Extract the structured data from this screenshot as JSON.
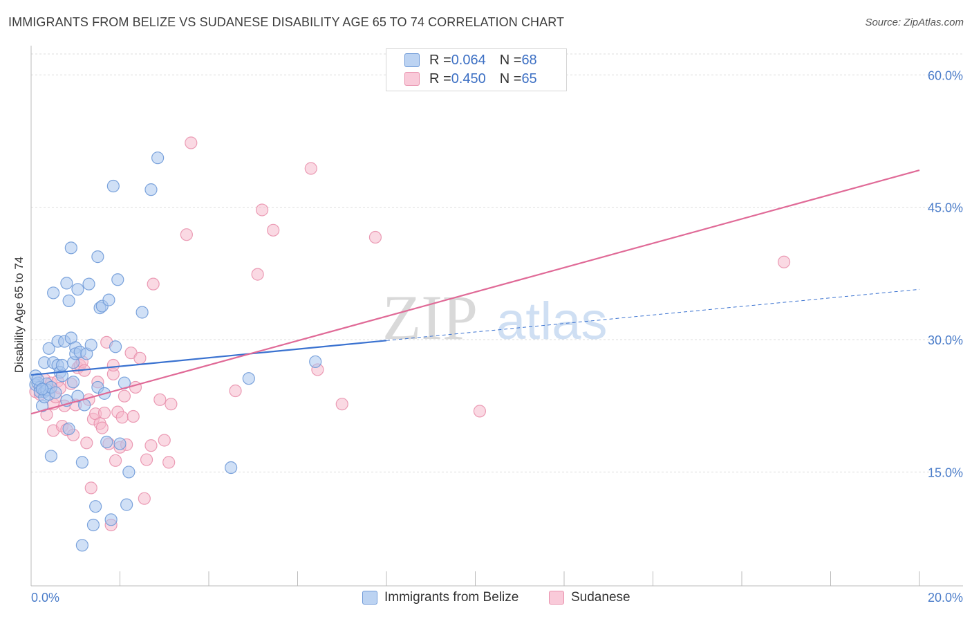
{
  "title": "IMMIGRANTS FROM BELIZE VS SUDANESE DISABILITY AGE 65 TO 74 CORRELATION CHART",
  "source": "Source: ZipAtlas.com",
  "watermark": {
    "zip": "ZIP",
    "atlas": "atlas"
  },
  "legend": {
    "rows": [
      {
        "r_label": "R = ",
        "r_value": "0.064",
        "n_label": "N = ",
        "n_value": "68"
      },
      {
        "r_label": "R = ",
        "r_value": "0.450",
        "n_label": "N = ",
        "n_value": "65"
      }
    ]
  },
  "colors": {
    "blue_fill": "#a9c6ef",
    "blue_stroke": "#6f9ad8",
    "blue_line": "#3a72d0",
    "pink_fill": "#f6b9cc",
    "pink_stroke": "#e991ad",
    "pink_line": "#e06a97",
    "grid": "#dddddd",
    "tick_label": "#4a7cc9"
  },
  "chart_data": {
    "type": "scatter",
    "title": "IMMIGRANTS FROM BELIZE VS SUDANESE DISABILITY AGE 65 TO 74 CORRELATION CHART",
    "xlabel": "",
    "ylabel": "Disability Age 65 to 74",
    "xlim": [
      0,
      20
    ],
    "ylim": [
      2.1,
      63
    ],
    "x_tick_labels": [
      "0.0%",
      "20.0%"
    ],
    "y_ticks": [
      {
        "value": 15,
        "label": "15.0%"
      },
      {
        "value": 30,
        "label": "30.0%"
      },
      {
        "value": 45,
        "label": "45.0%"
      },
      {
        "value": 60,
        "label": "60.0%"
      }
    ],
    "grid": true,
    "series": [
      {
        "name": "Immigrants from Belize",
        "color": "blue",
        "r": 0.064,
        "n": 68,
        "trend": {
          "x0": 0,
          "y0": 26.0,
          "x1": 8.0,
          "y1": 29.9,
          "dash_x1": 20.0,
          "dash_y1": 35.7
        },
        "points": [
          [
            0.1,
            25.9
          ],
          [
            0.1,
            24.9
          ],
          [
            0.15,
            25.1
          ],
          [
            0.2,
            24.6
          ],
          [
            0.2,
            24.1
          ],
          [
            0.25,
            22.5
          ],
          [
            0.3,
            24.1
          ],
          [
            0.3,
            27.4
          ],
          [
            0.3,
            23.5
          ],
          [
            0.35,
            25.0
          ],
          [
            0.35,
            24.3
          ],
          [
            0.4,
            23.8
          ],
          [
            0.4,
            29.0
          ],
          [
            0.45,
            24.6
          ],
          [
            0.45,
            16.8
          ],
          [
            0.5,
            35.3
          ],
          [
            0.5,
            27.4
          ],
          [
            0.55,
            24.0
          ],
          [
            0.6,
            29.8
          ],
          [
            0.6,
            27.1
          ],
          [
            0.65,
            26.3
          ],
          [
            0.7,
            25.9
          ],
          [
            0.7,
            27.1
          ],
          [
            0.75,
            29.8
          ],
          [
            0.8,
            36.4
          ],
          [
            0.8,
            23.1
          ],
          [
            0.85,
            34.4
          ],
          [
            0.85,
            19.9
          ],
          [
            0.9,
            30.2
          ],
          [
            0.9,
            40.4
          ],
          [
            0.95,
            25.2
          ],
          [
            0.95,
            27.4
          ],
          [
            1.0,
            29.1
          ],
          [
            1.0,
            28.4
          ],
          [
            1.05,
            35.7
          ],
          [
            1.05,
            23.6
          ],
          [
            1.1,
            28.6
          ],
          [
            1.15,
            16.1
          ],
          [
            1.15,
            6.7
          ],
          [
            1.2,
            22.6
          ],
          [
            1.25,
            28.4
          ],
          [
            1.3,
            36.3
          ],
          [
            1.35,
            29.4
          ],
          [
            1.4,
            9.0
          ],
          [
            1.45,
            11.1
          ],
          [
            1.5,
            39.4
          ],
          [
            1.5,
            24.6
          ],
          [
            1.55,
            33.6
          ],
          [
            1.6,
            33.8
          ],
          [
            1.65,
            23.9
          ],
          [
            1.7,
            18.4
          ],
          [
            1.75,
            34.5
          ],
          [
            1.8,
            9.6
          ],
          [
            1.85,
            47.4
          ],
          [
            1.9,
            29.2
          ],
          [
            1.95,
            36.8
          ],
          [
            2.0,
            18.2
          ],
          [
            2.1,
            25.1
          ],
          [
            2.15,
            11.3
          ],
          [
            2.2,
            15.0
          ],
          [
            2.5,
            33.1
          ],
          [
            2.7,
            47.0
          ],
          [
            2.85,
            50.6
          ],
          [
            4.5,
            15.5
          ],
          [
            4.9,
            25.6
          ],
          [
            6.4,
            27.5
          ],
          [
            0.15,
            25.5
          ],
          [
            0.25,
            24.4
          ]
        ]
      },
      {
        "name": "Sudanese",
        "color": "pink",
        "r": 0.45,
        "n": 65,
        "trend": {
          "x0": 0,
          "y0": 21.6,
          "x1": 20.0,
          "y1": 49.2
        },
        "points": [
          [
            0.1,
            24.1
          ],
          [
            0.2,
            23.8
          ],
          [
            0.3,
            25.5
          ],
          [
            0.35,
            21.5
          ],
          [
            0.4,
            24.4
          ],
          [
            0.45,
            25.1
          ],
          [
            0.5,
            22.7
          ],
          [
            0.5,
            19.7
          ],
          [
            0.55,
            23.5
          ],
          [
            0.6,
            25.3
          ],
          [
            0.65,
            24.5
          ],
          [
            0.7,
            20.2
          ],
          [
            0.75,
            22.5
          ],
          [
            0.8,
            19.8
          ],
          [
            0.9,
            25.0
          ],
          [
            0.95,
            19.2
          ],
          [
            1.0,
            22.6
          ],
          [
            1.05,
            26.8
          ],
          [
            1.1,
            27.1
          ],
          [
            1.15,
            27.5
          ],
          [
            1.2,
            26.5
          ],
          [
            1.25,
            18.3
          ],
          [
            1.3,
            23.2
          ],
          [
            1.35,
            13.2
          ],
          [
            1.4,
            21.0
          ],
          [
            1.45,
            21.6
          ],
          [
            1.5,
            25.2
          ],
          [
            1.55,
            20.5
          ],
          [
            1.6,
            20.0
          ],
          [
            1.65,
            21.7
          ],
          [
            1.7,
            29.7
          ],
          [
            1.75,
            18.2
          ],
          [
            1.8,
            9.0
          ],
          [
            1.85,
            26.1
          ],
          [
            1.85,
            27.1
          ],
          [
            1.9,
            16.3
          ],
          [
            1.95,
            21.8
          ],
          [
            2.0,
            17.8
          ],
          [
            2.05,
            21.2
          ],
          [
            2.1,
            23.6
          ],
          [
            2.15,
            18.1
          ],
          [
            2.25,
            28.5
          ],
          [
            2.3,
            21.3
          ],
          [
            2.35,
            24.6
          ],
          [
            2.45,
            27.9
          ],
          [
            2.55,
            12.0
          ],
          [
            2.6,
            16.4
          ],
          [
            2.7,
            18.0
          ],
          [
            2.75,
            36.3
          ],
          [
            2.9,
            23.2
          ],
          [
            3.0,
            18.6
          ],
          [
            3.1,
            16.1
          ],
          [
            3.15,
            22.7
          ],
          [
            3.5,
            41.9
          ],
          [
            3.6,
            52.3
          ],
          [
            4.6,
            24.2
          ],
          [
            5.1,
            37.4
          ],
          [
            5.2,
            44.7
          ],
          [
            5.45,
            42.4
          ],
          [
            6.3,
            49.4
          ],
          [
            6.45,
            26.6
          ],
          [
            7.0,
            22.7
          ],
          [
            7.75,
            41.6
          ],
          [
            10.1,
            21.9
          ],
          [
            16.95,
            38.8
          ]
        ]
      }
    ]
  }
}
